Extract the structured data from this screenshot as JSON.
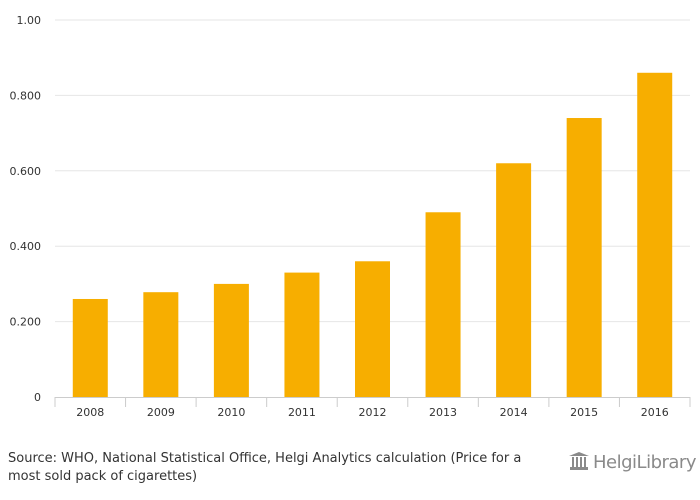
{
  "chart_data": {
    "type": "bar",
    "categories": [
      "2008",
      "2009",
      "2010",
      "2011",
      "2012",
      "2013",
      "2014",
      "2015",
      "2016"
    ],
    "values": [
      0.26,
      0.278,
      0.3,
      0.33,
      0.36,
      0.49,
      0.62,
      0.74,
      0.86
    ],
    "ylim": [
      0,
      1.0
    ],
    "yticks": [
      0,
      0.2,
      0.4,
      0.6,
      0.8,
      1.0
    ],
    "ytick_labels": [
      "0",
      "0.200",
      "0.400",
      "0.600",
      "0.800",
      "1.00"
    ],
    "grid": true,
    "bar_color": "#F7AE00",
    "gridline_color": "#E6E6E6"
  },
  "footer": {
    "source": "Source: WHO, National Statistical Office, Helgi Analytics calculation (Price for a most sold pack of cigarettes)",
    "brand": "HelgiLibrary"
  }
}
